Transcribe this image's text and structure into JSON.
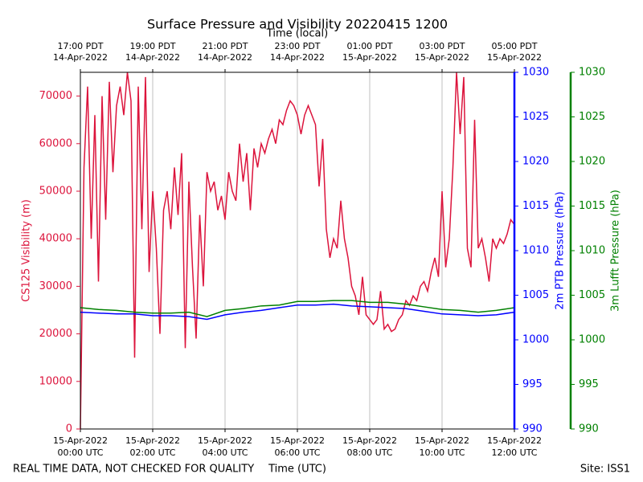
{
  "chart_data": {
    "type": "line",
    "title": "Surface Pressure and Visibility 20220415 1200",
    "x_label": "Time (UTC)",
    "x2_label": "Time (local)",
    "xlim": [
      0,
      12
    ],
    "xticks": [
      {
        "value": 0,
        "label": [
          "15-Apr-2022",
          "00:00 UTC"
        ]
      },
      {
        "value": 2,
        "label": [
          "15-Apr-2022",
          "02:00 UTC"
        ]
      },
      {
        "value": 4,
        "label": [
          "15-Apr-2022",
          "04:00 UTC"
        ]
      },
      {
        "value": 6,
        "label": [
          "15-Apr-2022",
          "06:00 UTC"
        ]
      },
      {
        "value": 8,
        "label": [
          "15-Apr-2022",
          "08:00 UTC"
        ]
      },
      {
        "value": 10,
        "label": [
          "15-Apr-2022",
          "10:00 UTC"
        ]
      },
      {
        "value": 12,
        "label": [
          "15-Apr-2022",
          "12:00 UTC"
        ]
      }
    ],
    "x2ticks": [
      {
        "value": 0,
        "label": [
          "17:00 PDT",
          "14-Apr-2022"
        ]
      },
      {
        "value": 2,
        "label": [
          "19:00 PDT",
          "14-Apr-2022"
        ]
      },
      {
        "value": 4,
        "label": [
          "21:00 PDT",
          "14-Apr-2022"
        ]
      },
      {
        "value": 6,
        "label": [
          "23:00 PDT",
          "14-Apr-2022"
        ]
      },
      {
        "value": 8,
        "label": [
          "01:00 PDT",
          "15-Apr-2022"
        ]
      },
      {
        "value": 10,
        "label": [
          "03:00 PDT",
          "15-Apr-2022"
        ]
      },
      {
        "value": 12,
        "label": [
          "05:00 PDT",
          "15-Apr-2022"
        ]
      }
    ],
    "grid": true,
    "y_label": "CS125 Visibility (m)",
    "ylim": [
      0,
      75000
    ],
    "yticks": [
      0,
      10000,
      20000,
      30000,
      40000,
      50000,
      60000,
      70000
    ],
    "y_color": "#dc143c",
    "y2_label": "2m PTB Pressure (hPa)",
    "y2lim": [
      990,
      1030
    ],
    "y2ticks": [
      990,
      995,
      1000,
      1005,
      1010,
      1015,
      1020,
      1025,
      1030
    ],
    "y2_color": "#0000ff",
    "y3_label": "3m Lufft Pressure (hPa)",
    "y3lim": [
      990,
      1030
    ],
    "y3ticks": [
      990,
      995,
      1000,
      1005,
      1010,
      1015,
      1020,
      1025,
      1030
    ],
    "y3_color": "#008000",
    "series": [
      {
        "name": "CS125 Visibility",
        "color": "#dc143c",
        "axis": "y",
        "x": [
          0,
          0.1,
          0.2,
          0.3,
          0.4,
          0.5,
          0.6,
          0.7,
          0.8,
          0.9,
          1,
          1.1,
          1.2,
          1.3,
          1.4,
          1.5,
          1.6,
          1.7,
          1.8,
          1.9,
          2,
          2.1,
          2.2,
          2.3,
          2.4,
          2.5,
          2.6,
          2.7,
          2.8,
          2.9,
          3,
          3.1,
          3.2,
          3.3,
          3.4,
          3.5,
          3.6,
          3.7,
          3.8,
          3.9,
          4,
          4.1,
          4.2,
          4.3,
          4.4,
          4.5,
          4.6,
          4.7,
          4.8,
          4.9,
          5,
          5.1,
          5.2,
          5.3,
          5.4,
          5.5,
          5.6,
          5.7,
          5.8,
          5.9,
          6,
          6.1,
          6.2,
          6.3,
          6.4,
          6.5,
          6.6,
          6.7,
          6.8,
          6.9,
          7,
          7.1,
          7.2,
          7.3,
          7.4,
          7.5,
          7.6,
          7.7,
          7.8,
          7.9,
          8,
          8.1,
          8.2,
          8.3,
          8.4,
          8.5,
          8.6,
          8.7,
          8.8,
          8.9,
          9,
          9.1,
          9.2,
          9.3,
          9.4,
          9.5,
          9.6,
          9.7,
          9.8,
          9.9,
          10,
          10.1,
          10.2,
          10.3,
          10.4,
          10.5,
          10.6,
          10.7,
          10.8,
          10.9,
          11,
          11.1,
          11.2,
          11.3,
          11.4,
          11.5,
          11.6,
          11.7,
          11.8,
          11.9,
          12
        ],
        "values": [
          0,
          55000,
          72000,
          40000,
          66000,
          31000,
          70000,
          44000,
          73000,
          54000,
          68000,
          72000,
          66000,
          75000,
          69000,
          15000,
          72000,
          42000,
          74000,
          33000,
          50000,
          38000,
          20000,
          46000,
          50000,
          42000,
          55000,
          45000,
          58000,
          17000,
          52000,
          34000,
          19000,
          45000,
          30000,
          54000,
          50000,
          52000,
          46000,
          49000,
          44000,
          54000,
          50000,
          48000,
          60000,
          52000,
          58000,
          46000,
          59000,
          55000,
          60000,
          58000,
          61000,
          63000,
          60000,
          65000,
          64000,
          67000,
          69000,
          68000,
          66000,
          62000,
          66000,
          68000,
          66000,
          64000,
          51000,
          61000,
          42000,
          36000,
          40000,
          38000,
          48000,
          40000,
          36000,
          30000,
          28000,
          24000,
          32000,
          24000,
          23000,
          22000,
          23000,
          29000,
          21000,
          22000,
          20500,
          21000,
          23000,
          24000,
          27000,
          26000,
          28000,
          27000,
          30000,
          31000,
          29000,
          33000,
          36000,
          32000,
          50000,
          34000,
          40000,
          55000,
          75000,
          62000,
          74000,
          38000,
          34000,
          65000,
          38000,
          40000,
          36000,
          31000,
          40000,
          38000,
          40000,
          39000,
          41000,
          44000,
          43000
        ]
      },
      {
        "name": "2m PTB Pressure",
        "color": "#0000ff",
        "axis": "y2",
        "x": [
          0,
          0.5,
          1,
          1.5,
          2,
          2.5,
          3,
          3.5,
          4,
          4.5,
          5,
          5.5,
          6,
          6.5,
          7,
          7.5,
          8,
          8.5,
          9,
          9.5,
          10,
          10.5,
          11,
          11.5,
          12
        ],
        "values": [
          1003.1,
          1003.0,
          1002.9,
          1002.9,
          1002.7,
          1002.7,
          1002.6,
          1002.3,
          1002.8,
          1003.1,
          1003.3,
          1003.6,
          1003.9,
          1003.9,
          1004.0,
          1003.8,
          1003.7,
          1003.6,
          1003.5,
          1003.2,
          1002.9,
          1002.8,
          1002.7,
          1002.8,
          1003.1
        ]
      },
      {
        "name": "3m Lufft Pressure",
        "color": "#008000",
        "axis": "y3",
        "x": [
          0,
          0.5,
          1,
          1.5,
          2,
          2.5,
          3,
          3.5,
          4,
          4.5,
          5,
          5.5,
          6,
          6.5,
          7,
          7.5,
          8,
          8.5,
          9,
          9.5,
          10,
          10.5,
          11,
          11.5,
          12
        ],
        "values": [
          1003.6,
          1003.4,
          1003.3,
          1003.1,
          1003.0,
          1003.0,
          1003.1,
          1002.6,
          1003.3,
          1003.5,
          1003.8,
          1003.9,
          1004.3,
          1004.3,
          1004.4,
          1004.4,
          1004.2,
          1004.2,
          1004.0,
          1003.7,
          1003.4,
          1003.3,
          1003.1,
          1003.3,
          1003.6
        ]
      }
    ]
  },
  "footer": {
    "left": "REAL TIME DATA, NOT CHECKED FOR QUALITY",
    "right": "Site: ISS1"
  }
}
